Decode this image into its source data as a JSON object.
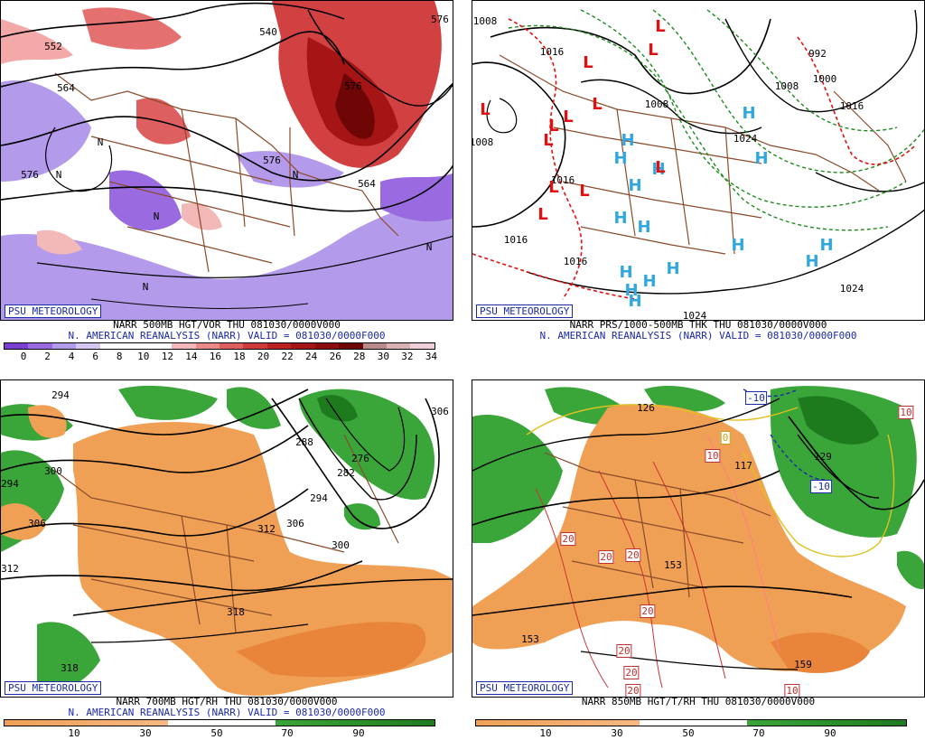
{
  "panels": [
    {
      "id": "p1",
      "brand": "PSU METEOROLOGY",
      "title": "NARR 500MB HGT/VOR THU 081030/0000V000",
      "subtitle": "N. AMERICAN REANALYSIS (NARR) VALID = 081030/0000F000",
      "colorbar_labels": [
        "0",
        "2",
        "4",
        "6",
        "8",
        "10",
        "12",
        "14",
        "16",
        "18",
        "20",
        "22",
        "24",
        "26",
        "28",
        "30",
        "32",
        "34"
      ],
      "colorbar_colors": [
        "#7a3fd1",
        "#9a6ae0",
        "#b49aea",
        "#d6c8f2",
        "#ffffff",
        "#ffffff",
        "#ffffff",
        "#f3b8b8",
        "#ea8b8b",
        "#de5f5f",
        "#cf3b3b",
        "#bd2222",
        "#a51515",
        "#8b0d0d",
        "#6e0606",
        "#b88a8a",
        "#d9b3b3",
        "#f0d0d8"
      ],
      "contour_labels": [
        "552",
        "564",
        "576",
        "576",
        "540",
        "564",
        "576",
        "576",
        "N",
        "N",
        "N",
        "N",
        "N",
        "N"
      ]
    },
    {
      "id": "p2",
      "brand": "PSU METEOROLOGY",
      "title": "NARR PRS/1000-500MB THK THU 081030/0000V000",
      "subtitle": "N. AMERICAN REANALYSIS (NARR) VALID = 081030/0000F000",
      "contour_labels": [
        "1008",
        "1016",
        "1008",
        "1016",
        "1016",
        "1008",
        "1024",
        "1016",
        "992",
        "1000",
        "1008",
        "1016",
        "1024",
        "1024"
      ],
      "highs": [
        "H",
        "H",
        "H",
        "H",
        "H",
        "H",
        "H",
        "H",
        "H",
        "H",
        "H",
        "H",
        "H",
        "H",
        "H",
        "H"
      ],
      "lows": [
        "L",
        "L",
        "L",
        "L",
        "L",
        "L",
        "L",
        "L",
        "L",
        "L",
        "L",
        "L"
      ]
    },
    {
      "id": "p3",
      "brand": "PSU METEOROLOGY",
      "title": "NARR 700MB HGT/RH THU 081030/0000V000",
      "subtitle": "N. AMERICAN REANALYSIS (NARR) VALID = 081030/0000F000",
      "colorbar_labels": [
        "10",
        "30",
        "50",
        "70",
        "90"
      ],
      "contour_labels": [
        "294",
        "300",
        "294",
        "306",
        "312",
        "288",
        "276",
        "282",
        "294",
        "306",
        "300",
        "312",
        "318",
        "318",
        "306"
      ]
    },
    {
      "id": "p4",
      "brand": "PSU METEOROLOGY",
      "title": "NARR 850MB HGT/T/RH THU 081030/0000V000",
      "colorbar_labels": [
        "10",
        "30",
        "50",
        "70",
        "90"
      ],
      "contour_labels": [
        "126",
        "129",
        "117",
        "153",
        "153",
        "159",
        "-10",
        "-10",
        "10",
        "10",
        "20",
        "20",
        "20",
        "20",
        "20",
        "20",
        "20",
        "10",
        "0"
      ]
    }
  ],
  "colors": {
    "rh_dry": "#f0a055",
    "rh_moist": "#3aa63a",
    "rh_moist_dark": "#1d7a1d",
    "map_border": "#8b4b2b",
    "high": "#2fa7e0",
    "low": "#e01010"
  }
}
